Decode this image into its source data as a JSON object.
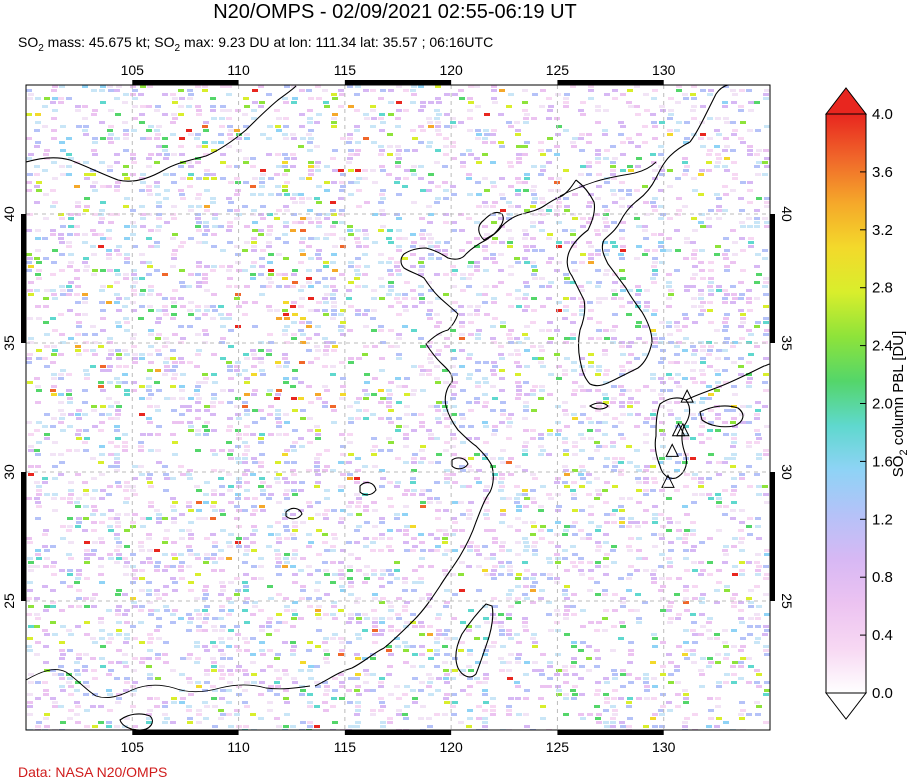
{
  "title": "N20/OMPS - 02/09/2021 02:55-06:19 UT",
  "subtitle": {
    "p1": "SO",
    "s1": "2",
    "p2": " mass: 45.675 kt; SO",
    "s2": "2",
    "p3": " max: 9.23 DU at lon: 111.34 lat: 35.57 ; 06:16UTC"
  },
  "credit": "Data: NASA N20/OMPS",
  "colorbar": {
    "title_prefix": "SO",
    "title_sub": "2",
    "title_suffix": " column PBL [DU]",
    "ticks": [
      "4.0",
      "3.6",
      "3.2",
      "2.8",
      "2.4",
      "2.0",
      "1.6",
      "1.2",
      "0.8",
      "0.4",
      "0.0"
    ],
    "range": [
      0.0,
      4.0
    ],
    "colors": [
      "#ffffff",
      "#f7d8f3",
      "#ecc3f1",
      "#d7b8f4",
      "#b5c2f8",
      "#8fd3f6",
      "#5fd8ce",
      "#54d66a",
      "#8ee33a",
      "#d9ee2c",
      "#f3d92b",
      "#f5a82a",
      "#f0672a",
      "#e8261f"
    ]
  },
  "chart_data": {
    "type": "heatmap",
    "map_extent": {
      "lon": [
        100,
        135
      ],
      "lat": [
        20,
        45
      ]
    },
    "lon_ticks": [
      "105",
      "110",
      "115",
      "120",
      "125",
      "130"
    ],
    "lat_ticks": [
      "40",
      "35",
      "30",
      "25"
    ],
    "max_point": {
      "lon": 111.34,
      "lat": 35.57,
      "value_du": 9.23
    },
    "volcano_markers": [
      {
        "lon": 131.1,
        "lat": 32.9
      },
      {
        "lon": 130.9,
        "lat": 31.6
      },
      {
        "lon": 130.7,
        "lat": 31.6
      },
      {
        "lon": 130.4,
        "lat": 30.8
      },
      {
        "lon": 130.2,
        "lat": 29.6
      }
    ]
  },
  "colors": {
    "grid": "#bbbbbb",
    "coast": "#000000",
    "axis_bar": "#000000",
    "volcano_marker": "#000000"
  }
}
